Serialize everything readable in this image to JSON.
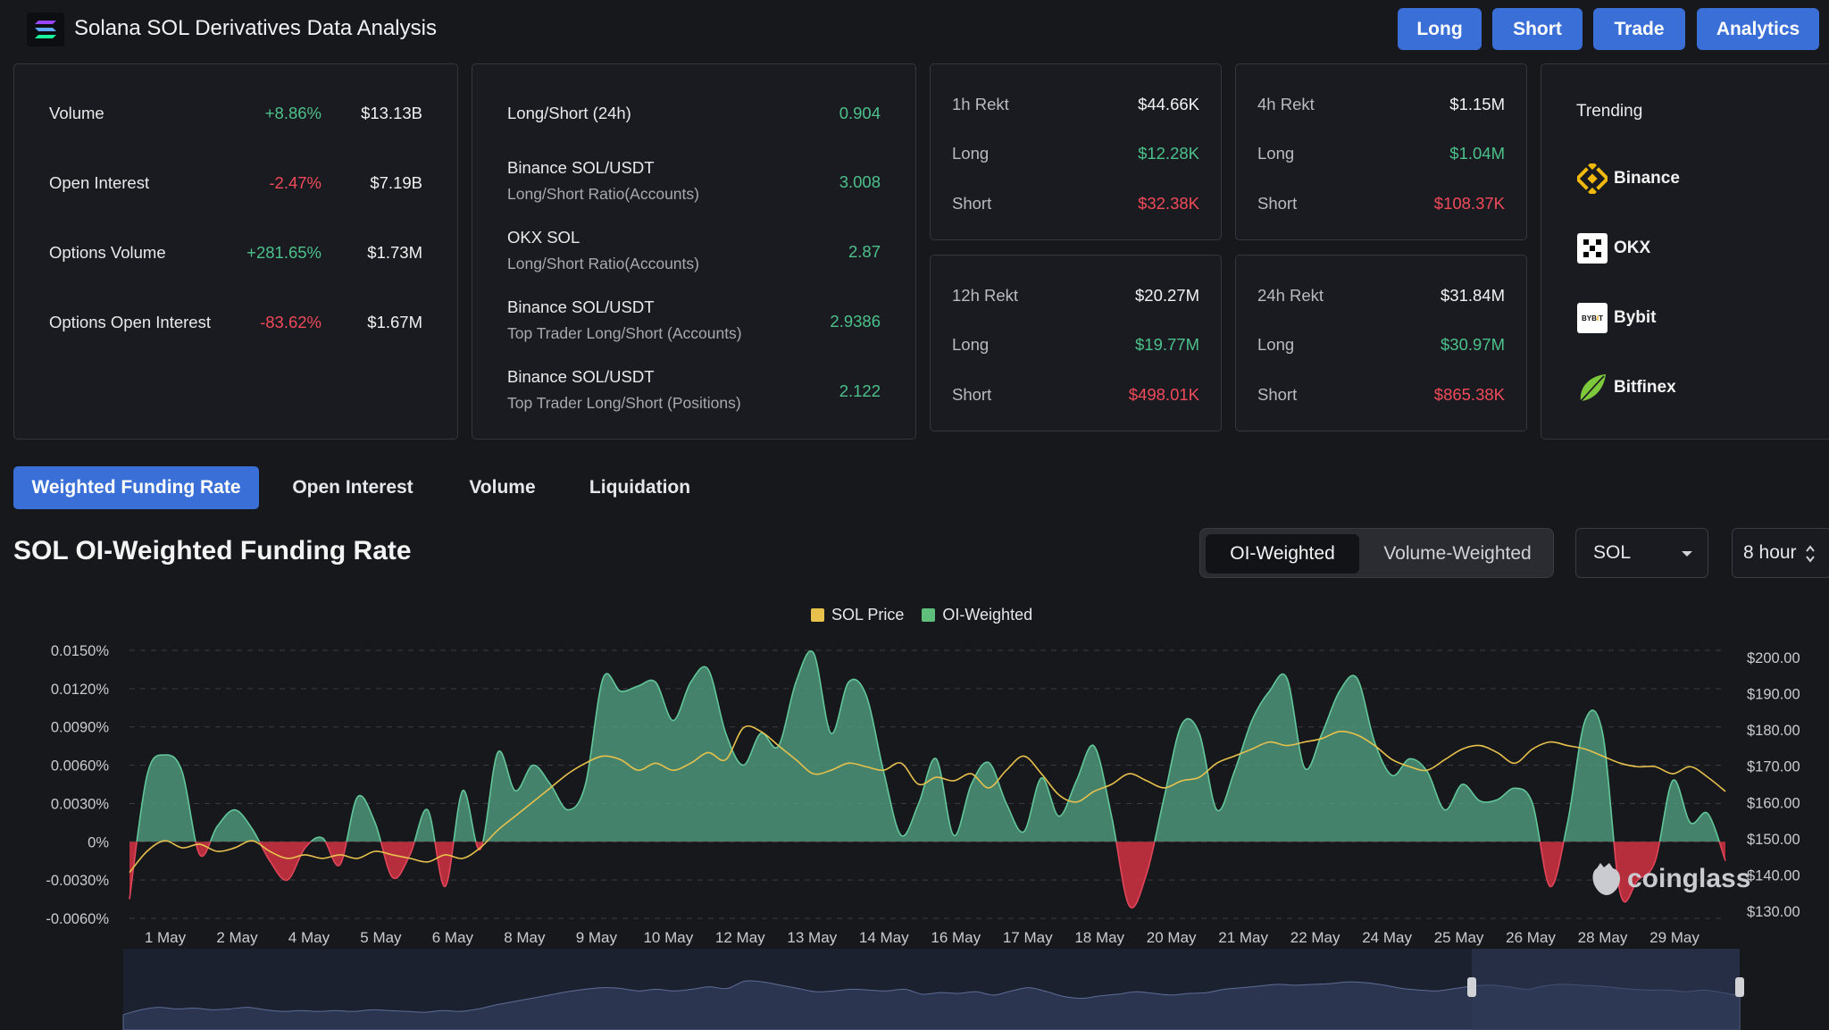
{
  "header": {
    "title": "Solana SOL Derivatives Data Analysis",
    "buttons": [
      "Long",
      "Short",
      "Trade",
      "Analytics"
    ]
  },
  "stats": [
    {
      "label": "Volume",
      "change": "+8.86%",
      "value": "$13.13B",
      "dir": "up"
    },
    {
      "label": "Open Interest",
      "change": "-2.47%",
      "value": "$7.19B",
      "dir": "down"
    },
    {
      "label": "Options Volume",
      "change": "+281.65%",
      "value": "$1.73M",
      "dir": "up"
    },
    {
      "label": "Options Open Interest",
      "change": "-83.62%",
      "value": "$1.67M",
      "dir": "down"
    }
  ],
  "long_short": {
    "header_label": "Long/Short (24h)",
    "header_value": "0.904",
    "rows": [
      {
        "line1": "Binance SOL/USDT",
        "line2": "Long/Short Ratio(Accounts)",
        "value": "3.008"
      },
      {
        "line1": "OKX SOL",
        "line2": "Long/Short Ratio(Accounts)",
        "value": "2.87"
      },
      {
        "line1": "Binance SOL/USDT",
        "line2": "Top Trader Long/Short (Accounts)",
        "value": "2.9386"
      },
      {
        "line1": "Binance SOL/USDT",
        "line2": "Top Trader Long/Short (Positions)",
        "value": "2.122"
      }
    ]
  },
  "rekt": [
    {
      "title": "1h Rekt",
      "total": "$44.66K",
      "long_label": "Long",
      "long": "$12.28K",
      "short_label": "Short",
      "short": "$32.38K"
    },
    {
      "title": "4h Rekt",
      "total": "$1.15M",
      "long_label": "Long",
      "long": "$1.04M",
      "short_label": "Short",
      "short": "$108.37K"
    },
    {
      "title": "12h Rekt",
      "total": "$20.27M",
      "long_label": "Long",
      "long": "$19.77M",
      "short_label": "Short",
      "short": "$498.01K"
    },
    {
      "title": "24h Rekt",
      "total": "$31.84M",
      "long_label": "Long",
      "long": "$30.97M",
      "short_label": "Short",
      "short": "$865.38K"
    }
  ],
  "trending": {
    "title": "Trending",
    "items": [
      {
        "name": "Binance",
        "icon": "binance-icon"
      },
      {
        "name": "OKX",
        "icon": "okx-icon"
      },
      {
        "name": "Bybit",
        "icon": "bybit-icon",
        "icon_text": "BYBIT"
      },
      {
        "name": "Bitfinex",
        "icon": "bitfinex-icon"
      }
    ]
  },
  "tabs": [
    "Weighted Funding Rate",
    "Open Interest",
    "Volume",
    "Liquidation"
  ],
  "active_tab": 0,
  "section_title": "SOL OI-Weighted Funding Rate",
  "weighting": {
    "options": [
      "OI-Weighted",
      "Volume-Weighted"
    ],
    "active": 0
  },
  "symbol_select": "SOL",
  "interval_select": "8 hour",
  "watermark": "coinglass",
  "colors": {
    "accent": "#3a6fd8",
    "positive": "#4cc08a",
    "negative": "#f04a5a",
    "price_line": "#e7c14c",
    "area_fill": "#4f9a7c",
    "neg_fill": "#c8313f"
  },
  "chart_data": {
    "type": "area",
    "legend": [
      {
        "name": "SOL Price",
        "color": "#e7c14c"
      },
      {
        "name": "OI-Weighted",
        "color": "#4cc08a"
      }
    ],
    "x_ticks": [
      "1 May",
      "2 May",
      "4 May",
      "5 May",
      "6 May",
      "8 May",
      "9 May",
      "10 May",
      "12 May",
      "13 May",
      "14 May",
      "16 May",
      "17 May",
      "18 May",
      "20 May",
      "21 May",
      "22 May",
      "24 May",
      "25 May",
      "26 May",
      "28 May",
      "29 May"
    ],
    "y_left_ticks": [
      "0.0150%",
      "0.0120%",
      "0.0090%",
      "0.0060%",
      "0.0030%",
      "0%",
      "-0.0030%",
      "-0.0060%"
    ],
    "y_right_ticks": [
      "$200.00",
      "$190.00",
      "$180.00",
      "$170.00",
      "$160.00",
      "$150.00",
      "$140.00",
      "$130.00"
    ],
    "ylim_left": [
      -0.006,
      0.015
    ],
    "ylim_right": [
      127,
      203
    ],
    "series": [
      {
        "name": "OI-Weighted",
        "values": [
          -0.0045,
          0.0052,
          0.0068,
          0.0055,
          -0.001,
          0.0012,
          0.0025,
          0.001,
          -0.0015,
          -0.003,
          -0.0005,
          0.0003,
          -0.0018,
          0.0035,
          0.0015,
          -0.0028,
          -0.001,
          0.0025,
          -0.0035,
          0.004,
          -0.0006,
          0.007,
          0.004,
          0.006,
          0.0045,
          0.0025,
          0.0045,
          0.0128,
          0.0118,
          0.0122,
          0.0125,
          0.0095,
          0.0125,
          0.0135,
          0.0085,
          0.006,
          0.0085,
          0.0075,
          0.0125,
          0.0148,
          0.0085,
          0.0125,
          0.0115,
          0.0055,
          0.0005,
          0.003,
          0.0065,
          0.0005,
          0.0045,
          0.0062,
          0.003,
          0.0008,
          0.005,
          0.002,
          0.0048,
          0.0075,
          0.002,
          -0.005,
          -0.0025,
          0.0035,
          0.0092,
          0.0085,
          0.0025,
          0.0055,
          0.0095,
          0.0118,
          0.0128,
          0.0058,
          0.0085,
          0.0118,
          0.0128,
          0.0078,
          0.0052,
          0.0065,
          0.0055,
          0.0025,
          0.0045,
          0.0032,
          0.0033,
          0.0042,
          0.003,
          -0.0035,
          0.0015,
          0.0095,
          0.0085,
          -0.004,
          -0.003,
          -0.0015,
          0.0048,
          0.0015,
          0.0022,
          -0.0015
        ]
      },
      {
        "name": "SOL Price",
        "values": [
          140,
          146,
          149,
          147,
          148,
          146,
          147,
          149,
          146,
          144,
          145,
          144,
          145,
          144,
          146,
          145,
          144,
          143,
          145,
          144,
          147,
          152,
          156,
          160,
          164,
          168,
          171,
          173,
          172,
          169,
          171,
          169,
          171,
          174,
          172,
          181,
          180,
          176,
          172,
          168,
          169,
          171,
          170,
          169,
          171,
          165,
          167,
          166,
          168,
          164,
          169,
          173,
          168,
          162,
          160,
          163,
          165,
          168,
          166,
          164,
          166,
          167,
          171,
          173,
          175,
          177,
          176,
          177,
          178,
          180,
          179,
          176,
          172,
          170,
          169,
          172,
          175,
          176,
          174,
          171,
          175,
          177,
          176,
          175,
          173,
          171,
          170,
          170,
          168,
          170,
          167,
          163
        ]
      }
    ],
    "navigator": true
  }
}
